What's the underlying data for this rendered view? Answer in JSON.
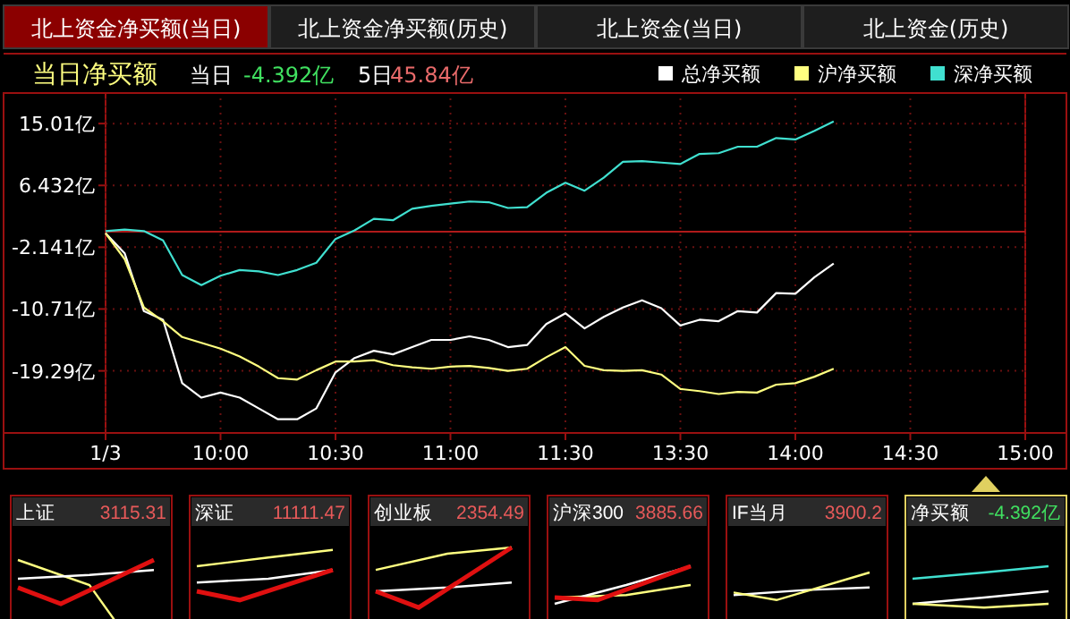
{
  "chart_data": [
    {
      "type": "other",
      "annotations": [
        "北上资金净买额(当日)",
        "北上资金净买额(历史)",
        "北上资金(当日)",
        "北上资金(历史)"
      ]
    },
    {
      "type": "line",
      "title": "当日净买额",
      "annotations": [
        "当日",
        "-4.392亿",
        "5日",
        "45.84亿"
      ],
      "legend": "top right",
      "grid": true,
      "marker": "none",
      "line_style": "solid",
      "categories": [
        "1/3",
        null,
        null,
        null,
        null,
        null,
        "10:00",
        null,
        null,
        null,
        null,
        null,
        "10:30",
        null,
        null,
        null,
        null,
        null,
        "11:00",
        null,
        null,
        null,
        null,
        null,
        "11:30",
        null,
        null,
        null,
        null,
        null,
        "13:30",
        null,
        null,
        null,
        null,
        null,
        "14:00",
        null,
        null,
        null,
        null,
        null,
        "14:30",
        null,
        null,
        null,
        null,
        null,
        "15:00"
      ],
      "ylim": [
        -27.9,
        18.5
      ],
      "yticks": [
        {
          "value": -19.29,
          "label": "-19.29亿"
        },
        {
          "value": -10.71,
          "label": "-10.71亿"
        },
        {
          "value": -2.141,
          "label": "-2.141亿"
        },
        {
          "value": 6.432,
          "label": "6.432亿"
        },
        {
          "value": 15.01,
          "label": "15.01亿"
        }
      ],
      "ref_lines": [
        {
          "axis": "y",
          "value": 0,
          "color": "#b01a1a",
          "line_style": "solid"
        }
      ],
      "series": [
        {
          "name": "总净买额",
          "color": "#ffffff",
          "values": [
            -0.2,
            -3,
            -11,
            -12.2,
            -21,
            -23,
            -22.3,
            -23,
            -24.5,
            -26,
            -26,
            -24.5,
            -19.5,
            -17.5,
            -16.5,
            -17,
            -16,
            -15,
            -15,
            -14.5,
            -15,
            -16,
            -15.7,
            -12.8,
            -11.3,
            -13.4,
            -11.8,
            -10.5,
            -9.5,
            -10.6,
            -13,
            -12.2,
            -12.4,
            -11,
            -11.2,
            -8.5,
            -8.6,
            -6.3,
            -4.4,
            null,
            null,
            null,
            null,
            null,
            null,
            null,
            null,
            null,
            null
          ]
        },
        {
          "name": "沪净买额",
          "color": "#ffff80",
          "values": [
            -0.2,
            -3.8,
            -10.5,
            -12.4,
            -14.6,
            -15.4,
            -16.2,
            -17.3,
            -18.7,
            -20.3,
            -20.5,
            -19.2,
            -18,
            -18,
            -17.8,
            -18.5,
            -18.8,
            -19,
            -18.7,
            -18.6,
            -18.9,
            -19.3,
            -19,
            -17.4,
            -16,
            -18.6,
            -19.2,
            -19.3,
            -19.2,
            -19.8,
            -21.8,
            -22.1,
            -22.5,
            -22.2,
            -22.3,
            -21.2,
            -21,
            -20.1,
            -19,
            null,
            null,
            null,
            null,
            null,
            null,
            null,
            null,
            null,
            null
          ]
        },
        {
          "name": "深净买额",
          "color": "#40e0d0",
          "values": [
            0.1,
            0.3,
            0.1,
            -1.2,
            -6,
            -7.4,
            -6.1,
            -5.3,
            -5.5,
            -6,
            -5.3,
            -4.3,
            -1,
            0.2,
            1.8,
            1.6,
            3.2,
            3.6,
            3.9,
            4.2,
            4.1,
            3.3,
            3.4,
            5.4,
            6.8,
            5.7,
            7.5,
            9.7,
            9.8,
            9.6,
            9.4,
            10.8,
            10.9,
            11.8,
            11.8,
            13,
            12.8,
            14,
            15.3,
            null,
            null,
            null,
            null,
            null,
            null,
            null,
            null,
            null,
            null
          ]
        }
      ]
    },
    {
      "type": "other",
      "title": "上证",
      "annotations": [
        "3115.31"
      ],
      "color": "#e85a5a"
    },
    {
      "type": "other",
      "title": "深证",
      "annotations": [
        "11111.47"
      ],
      "color": "#e85a5a"
    },
    {
      "type": "other",
      "title": "创业板",
      "annotations": [
        "2354.49"
      ],
      "color": "#e85a5a"
    },
    {
      "type": "other",
      "title": "沪深300",
      "annotations": [
        "3885.66"
      ],
      "color": "#e85a5a"
    },
    {
      "type": "other",
      "title": "IF当月",
      "annotations": [
        "3900.2"
      ],
      "color": "#e85a5a"
    },
    {
      "type": "other",
      "title": "净买额",
      "annotations": [
        "-4.392亿"
      ],
      "color": "#40e060"
    }
  ]
}
